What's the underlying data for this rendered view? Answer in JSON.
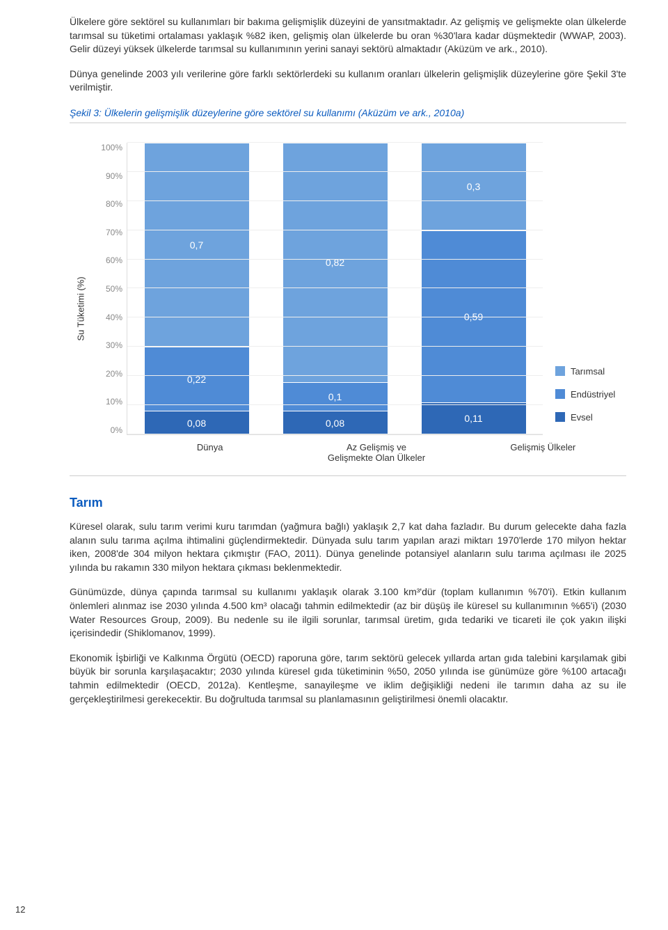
{
  "paragraphs": {
    "p1": "Ülkelere göre sektörel su kullanımları bir bakıma gelişmişlik düzeyini de yansıtmaktadır. Az gelişmiş ve gelişmekte olan ülkelerde tarımsal su tüketimi ortalaması yaklaşık %82 iken, gelişmiş olan ülkelerde bu oran %30'lara kadar düşmektedir (WWAP, 2003). Gelir düzeyi yüksek ülkelerde tarımsal su kullanımının yerini sanayi sektörü almaktadır (Aküzüm ve ark., 2010).",
    "p2": "Dünya genelinde 2003 yılı verilerine göre farklı sektörlerdeki su kullanım oranları ülkelerin gelişmişlik düzeylerine göre Şekil 3'te verilmiştir.",
    "p3": "Küresel olarak, sulu tarım verimi kuru tarımdan (yağmura bağlı) yaklaşık 2,7 kat daha fazladır. Bu durum gelecekte daha fazla alanın sulu tarıma açılma ihtimalini güçlendirmektedir. Dünyada sulu tarım yapılan arazi miktarı 1970'lerde 170 milyon hektar iken, 2008'de 304 milyon hektara çıkmıştır (FAO, 2011). Dünya genelinde potansiyel alanların sulu tarıma açılması ile 2025 yılında bu rakamın 330 milyon hektara çıkması beklenmektedir.",
    "p4": "Günümüzde, dünya çapında tarımsal su kullanımı yaklaşık olarak 3.100 km³'dür (toplam kullanımın %70'i). Etkin kullanım önlemleri alınmaz ise 2030 yılında 4.500 km³ olacağı tahmin edilmektedir (az bir düşüş ile küresel su kullanımının %65'i) (2030 Water Resources Group, 2009). Bu nedenle su ile ilgili sorunlar, tarımsal üretim, gıda tedariki ve ticareti ile çok yakın ilişki içerisindedir (Shiklomanov, 1999).",
    "p5": "Ekonomik İşbirliği ve Kalkınma Örgütü (OECD) raporuna göre, tarım sektörü gelecek yıllarda artan gıda talebini karşılamak gibi büyük bir sorunla karşılaşacaktır; 2030 yılında küresel gıda tüketiminin %50, 2050 yılında ise günümüze göre %100 artacağı tahmin edilmektedir (OECD, 2012a). Kentleşme, sanayileşme ve iklim değişikliği nedeni ile tarımın daha az su ile gerçekleştirilmesi gerekecektir. Bu doğrultuda tarımsal su planlamasının geliştirilmesi önemli olacaktır."
  },
  "section_heading": "Tarım",
  "page_number": "12",
  "chart": {
    "title": "Şekil 3: Ülkelerin gelişmişlik düzeylerine göre sektörel su kullanımı (Aküzüm ve ark., 2010a)",
    "ylabel": "Su Tüketimi (%)",
    "yticks": [
      "100%",
      "90%",
      "80%",
      "70%",
      "60%",
      "50%",
      "40%",
      "30%",
      "20%",
      "10%",
      "0%"
    ],
    "categories": [
      "Dünya",
      "Az Gelişmiş ve Gelişmekte Olan Ülkeler",
      "Gelişmiş Ülkeler"
    ],
    "colors": {
      "tarimsal": "#6ea3dd",
      "endustriyel": "#4f8bd6",
      "evsel": "#2e68b6"
    },
    "legend": {
      "tarimsal": "Tarımsal",
      "endustriyel": "Endüstriyel",
      "evsel": "Evsel"
    },
    "series": [
      {
        "evsel": 0.08,
        "endustriyel": 0.22,
        "tarimsal": 0.7,
        "labels": {
          "evsel": "0,08",
          "endustriyel": "0,22",
          "tarimsal": "0,7"
        }
      },
      {
        "evsel": 0.08,
        "endustriyel": 0.1,
        "tarimsal": 0.82,
        "labels": {
          "evsel": "0,08",
          "endustriyel": "0,1",
          "tarimsal": "0,82"
        }
      },
      {
        "evsel": 0.11,
        "endustriyel": 0.59,
        "tarimsal": 0.3,
        "labels": {
          "evsel": "0,11",
          "endustriyel": "0,59",
          "tarimsal": "0,3"
        }
      }
    ]
  }
}
